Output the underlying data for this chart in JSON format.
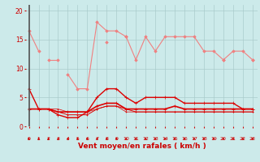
{
  "title": "",
  "xlabel": "Vent moyen/en rafales ( km/h )",
  "ylabel": "",
  "background_color": "#cceaea",
  "grid_color": "#aacccc",
  "x": [
    0,
    1,
    2,
    3,
    4,
    5,
    6,
    7,
    8,
    9,
    10,
    11,
    12,
    13,
    14,
    15,
    16,
    17,
    18,
    19,
    20,
    21,
    22,
    23
  ],
  "series": [
    {
      "y": [
        16.5,
        13.0,
        null,
        null,
        9.0,
        6.5,
        6.5,
        18.0,
        16.5,
        16.5,
        15.5,
        11.5,
        15.5,
        13.0,
        15.5,
        15.5,
        15.5,
        15.5,
        13.0,
        13.0,
        11.5,
        13.0,
        13.0,
        11.5
      ],
      "color": "#f08080",
      "lw": 0.8,
      "marker": "D",
      "ms": 1.8,
      "zorder": 2
    },
    {
      "y": [
        null,
        null,
        11.5,
        11.5,
        null,
        null,
        null,
        null,
        14.5,
        null,
        15.5,
        null,
        null,
        null,
        null,
        null,
        null,
        null,
        null,
        null,
        11.5,
        null,
        null,
        11.5
      ],
      "color": "#f08080",
      "lw": 0.8,
      "marker": "D",
      "ms": 1.8,
      "zorder": 2
    },
    {
      "y": [
        6.5,
        3.0,
        3.0,
        2.0,
        1.5,
        1.5,
        2.5,
        5.0,
        6.5,
        6.5,
        5.0,
        4.0,
        5.0,
        5.0,
        5.0,
        5.0,
        4.0,
        4.0,
        4.0,
        4.0,
        4.0,
        4.0,
        3.0,
        3.0
      ],
      "color": "#dd0000",
      "lw": 1.0,
      "marker": "+",
      "ms": 3.0,
      "zorder": 3
    },
    {
      "y": [
        3.0,
        3.0,
        3.0,
        2.5,
        2.5,
        2.5,
        2.5,
        3.5,
        4.0,
        4.0,
        3.0,
        3.0,
        3.0,
        3.0,
        3.0,
        3.5,
        3.0,
        3.0,
        3.0,
        3.0,
        3.0,
        3.0,
        3.0,
        3.0
      ],
      "color": "#dd0000",
      "lw": 1.2,
      "marker": "+",
      "ms": 2.5,
      "zorder": 3
    },
    {
      "y": [
        3.0,
        3.0,
        3.0,
        2.5,
        2.0,
        2.0,
        2.0,
        3.0,
        3.5,
        3.5,
        3.0,
        2.5,
        2.5,
        2.5,
        2.5,
        2.5,
        2.5,
        2.5,
        2.5,
        2.5,
        2.5,
        2.5,
        2.5,
        2.5
      ],
      "color": "#dd0000",
      "lw": 0.7,
      "marker": "+",
      "ms": 2.0,
      "zorder": 3
    },
    {
      "y": [
        3.0,
        3.0,
        3.0,
        3.0,
        2.5,
        2.5,
        2.5,
        3.0,
        3.5,
        3.5,
        2.5,
        2.5,
        2.5,
        2.5,
        2.5,
        2.5,
        2.5,
        2.5,
        2.5,
        2.5,
        2.5,
        2.5,
        2.5,
        2.5
      ],
      "color": "#dd0000",
      "lw": 0.5,
      "marker": "+",
      "ms": 2.0,
      "zorder": 3
    }
  ],
  "ylim": [
    0,
    21
  ],
  "xlim": [
    -0.3,
    23.5
  ],
  "yticks": [
    0,
    5,
    10,
    15,
    20
  ],
  "xticks": [
    0,
    1,
    2,
    3,
    4,
    5,
    6,
    7,
    8,
    9,
    10,
    11,
    12,
    13,
    14,
    15,
    16,
    17,
    18,
    19,
    20,
    21,
    22,
    23
  ],
  "tick_color": "#cc0000",
  "tick_fontsize": 4.5,
  "xlabel_fontsize": 6.5,
  "xlabel_color": "#cc0000",
  "ytick_fontsize": 5.5,
  "ytick_color": "#cc0000",
  "vline_color": "#555555",
  "vline_lw": 1.2,
  "arrow_color": "#cc0000"
}
